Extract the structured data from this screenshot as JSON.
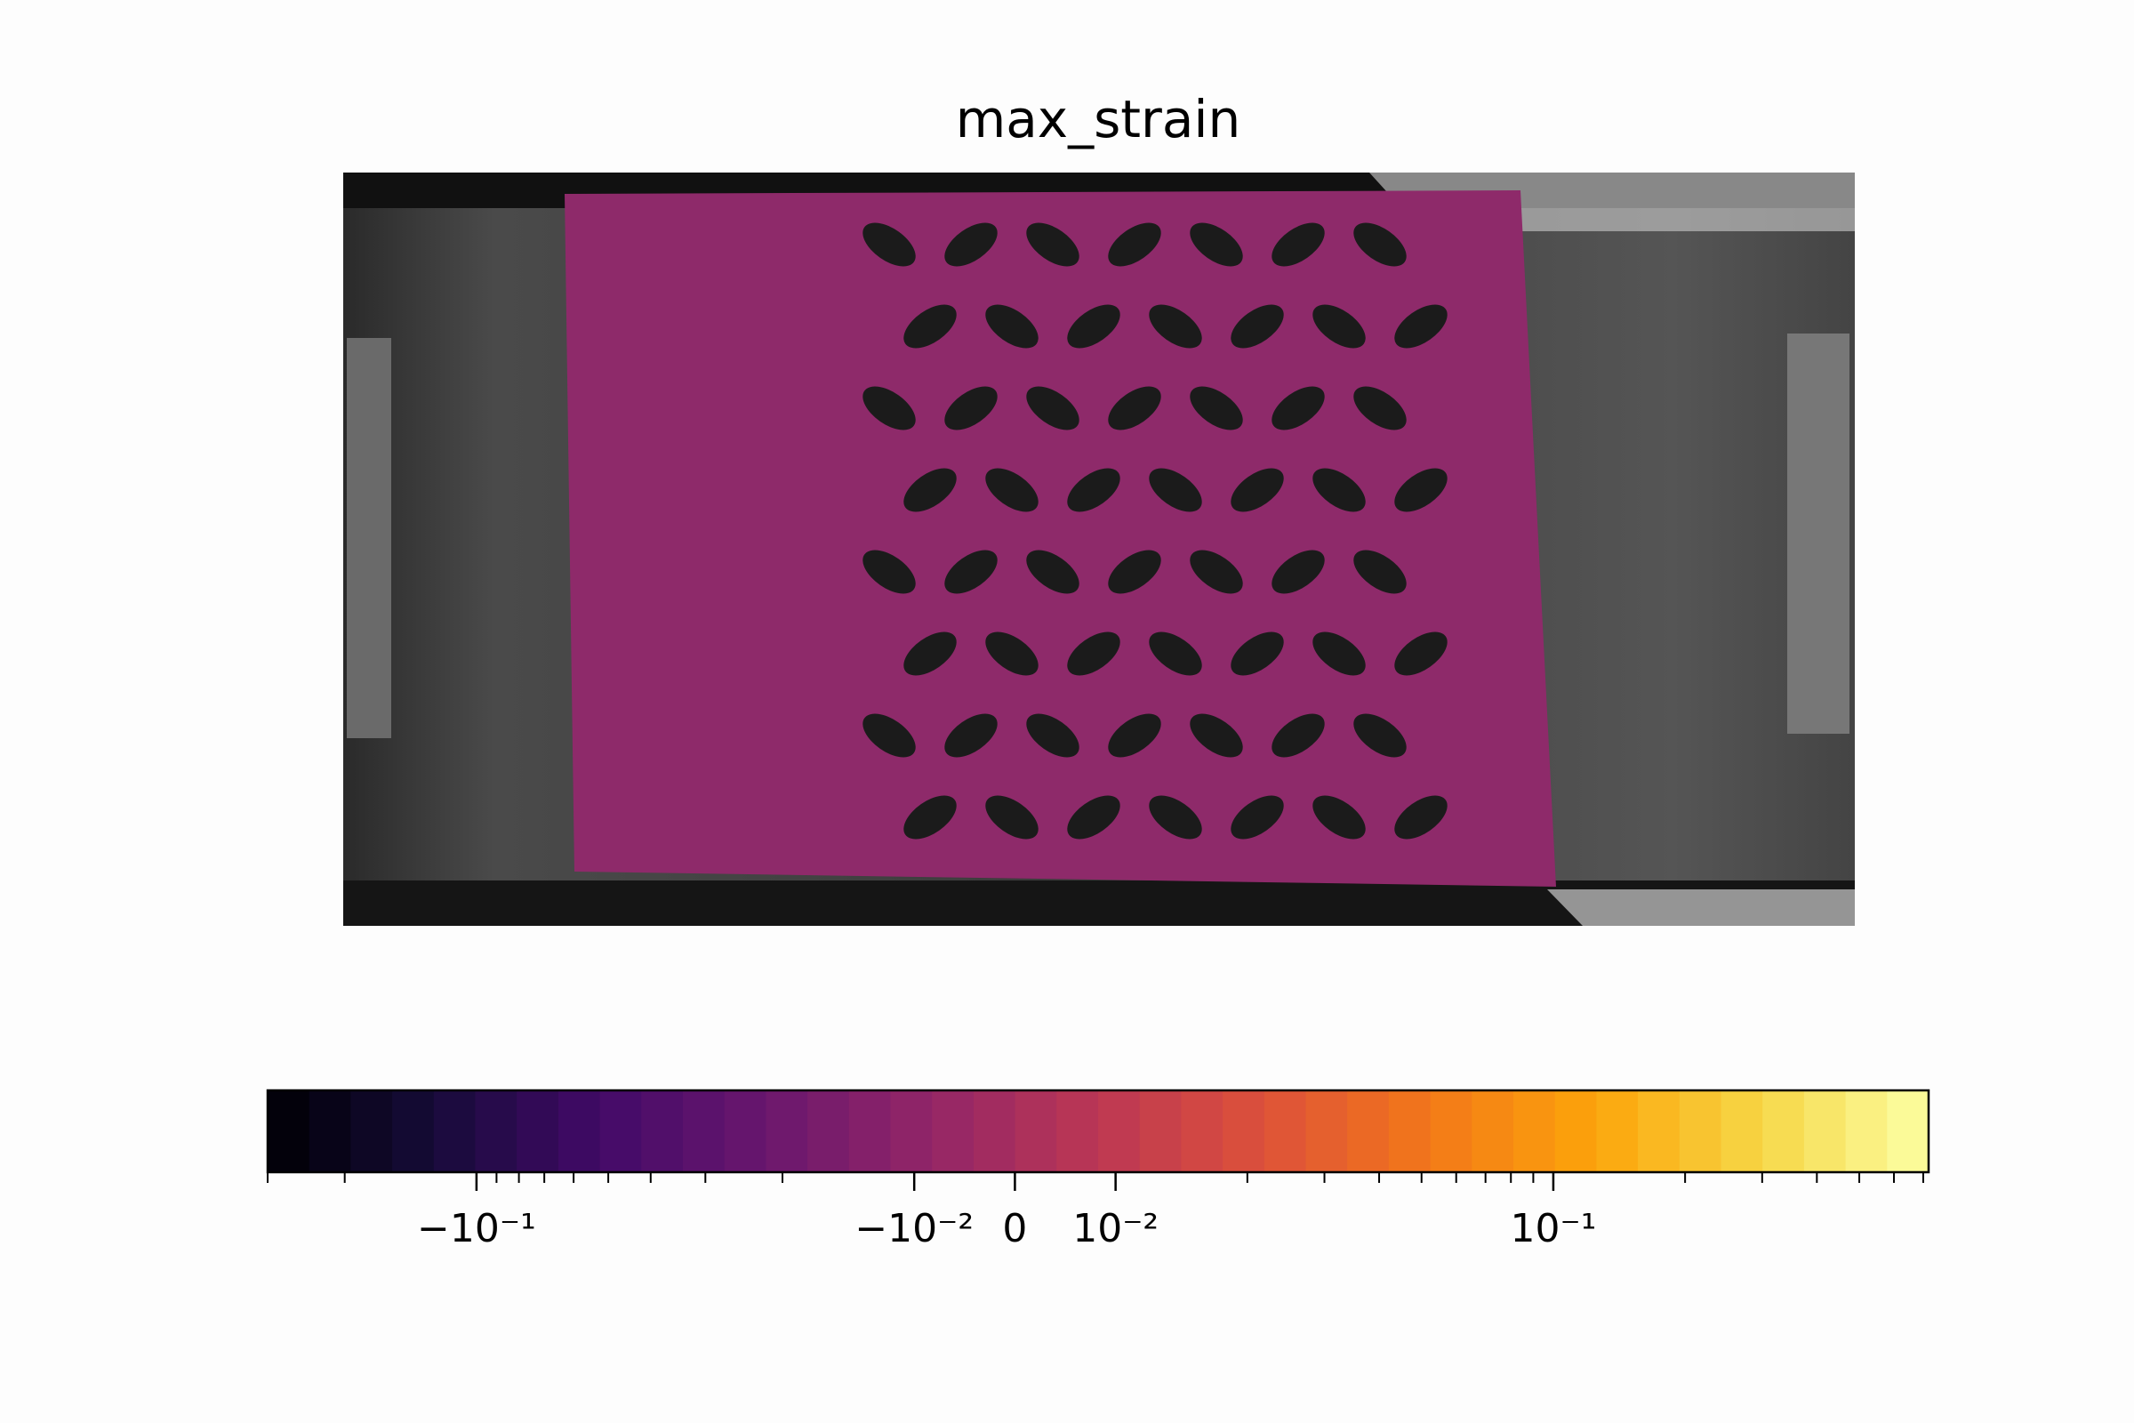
{
  "chart_data": {
    "type": "image",
    "title": "max_strain",
    "colorbar": {
      "scale": "symlog",
      "linthresh": 0.01,
      "linscale": 0.23,
      "colormap": "inferno",
      "lim": [
        -0.3,
        0.72
      ],
      "ticks": [
        {
          "value": -0.1,
          "label": "−10⁻¹"
        },
        {
          "value": -0.01,
          "label": "−10⁻²"
        },
        0,
        {
          "value": 0.01,
          "label": "10⁻²"
        },
        {
          "value": 0.1,
          "label": "10⁻¹"
        }
      ],
      "minor_ticks": [
        -0.3,
        -0.2,
        -0.09,
        -0.08,
        -0.07,
        -0.06,
        -0.05,
        -0.04,
        -0.03,
        -0.02,
        0.02,
        0.03,
        0.04,
        0.05,
        0.06,
        0.07,
        0.08,
        0.09,
        0.2,
        0.3,
        0.4,
        0.5,
        0.6,
        0.7
      ]
    }
  }
}
